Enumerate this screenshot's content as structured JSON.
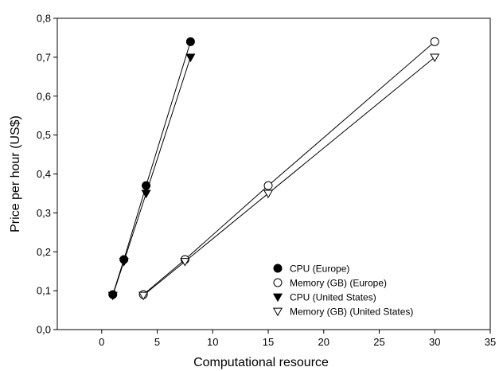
{
  "chart_data": {
    "type": "scatter",
    "xlabel": "Computational resource",
    "ylabel": "Price per hour (US$)",
    "xlim": [
      -4,
      35
    ],
    "ylim": [
      0,
      0.8
    ],
    "x_ticks": [
      0,
      5,
      10,
      15,
      20,
      25,
      30,
      35
    ],
    "x_tick_labels": [
      "0",
      "5",
      "10",
      "15",
      "20",
      "25",
      "30",
      "35"
    ],
    "y_ticks": [
      0,
      0.1,
      0.2,
      0.3,
      0.4,
      0.5,
      0.6,
      0.7,
      0.8
    ],
    "y_tick_labels": [
      "0,0",
      "0,1",
      "0,2",
      "0,3",
      "0,4",
      "0,5",
      "0,6",
      "0,7",
      "0,8"
    ],
    "grid": false,
    "legend_position": "bottom-right",
    "series": [
      {
        "name": "CPU (Europe)",
        "marker": "circle-filled",
        "color": "#000000",
        "x": [
          1,
          2,
          4,
          8
        ],
        "y": [
          0.09,
          0.18,
          0.37,
          0.74
        ]
      },
      {
        "name": "Memory (GB) (Europe)",
        "marker": "circle-open",
        "color": "#000000",
        "x": [
          3.75,
          7.5,
          15,
          30
        ],
        "y": [
          0.09,
          0.18,
          0.37,
          0.74
        ]
      },
      {
        "name": "CPU (United States)",
        "marker": "triangle-down-filled",
        "color": "#000000",
        "x": [
          1,
          2,
          4,
          8
        ],
        "y": [
          0.088,
          0.175,
          0.35,
          0.7
        ]
      },
      {
        "name": "Memory (GB) (United States)",
        "marker": "triangle-down-open",
        "color": "#000000",
        "x": [
          3.75,
          7.5,
          15,
          30
        ],
        "y": [
          0.088,
          0.175,
          0.35,
          0.7
        ]
      }
    ]
  }
}
